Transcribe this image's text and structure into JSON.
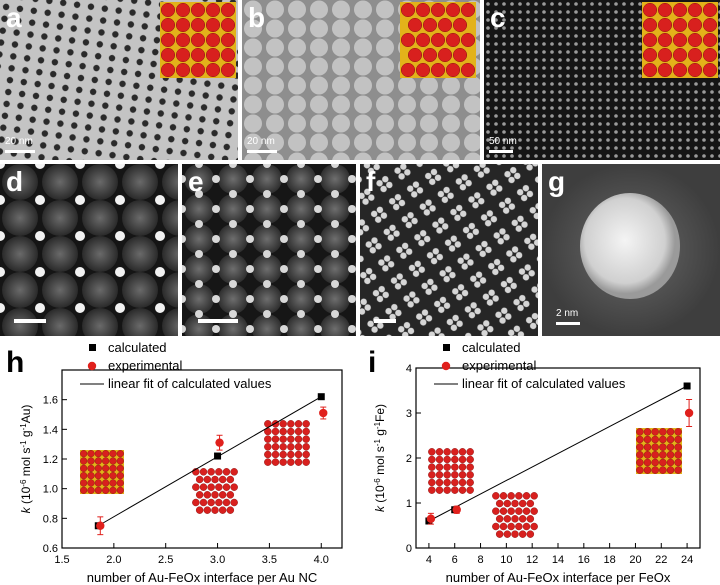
{
  "panels": {
    "a": {
      "label": "a",
      "scale": "20 nm"
    },
    "b": {
      "label": "b",
      "scale": "20 nm"
    },
    "c": {
      "label": "c",
      "scale": "50 nm"
    },
    "d": {
      "label": "d"
    },
    "e": {
      "label": "e"
    },
    "f": {
      "label": "f"
    },
    "g": {
      "label": "g",
      "scale": "2 nm"
    }
  },
  "colors": {
    "model_red": "#d8201e",
    "model_gold": "#e3b21a",
    "calc_marker": "#000000",
    "exp_marker": "#e0201c"
  },
  "chart_data": [
    {
      "panel_label": "h",
      "type": "scatter",
      "xlabel": "number of Au-FeOx interface per Au NC",
      "ylabel": "k (10⁻⁶ mol s⁻¹ g⁻¹Au)",
      "ylabel_parts": {
        "k": "k",
        "unit_open": "(10",
        "exp1": "-6",
        "mol": " mol s",
        "exp2": "-1",
        "g": " g",
        "exp3": "-1",
        "el": "Au)"
      },
      "xlim": [
        1.5,
        4.2
      ],
      "ylim": [
        0.6,
        1.8
      ],
      "xticks": [
        "1.5",
        "2.0",
        "2.5",
        "3.0",
        "3.5",
        "4.0"
      ],
      "yticks": [
        "0.6",
        "0.8",
        "1.0",
        "1.2",
        "1.4",
        "1.6"
      ],
      "legend": [
        "calculated",
        "experimental",
        "linear fit of calculated values"
      ],
      "legend_position": "top-left",
      "series": [
        {
          "name": "calculated",
          "x": [
            1.85,
            3.0,
            4.0
          ],
          "y": [
            0.75,
            1.22,
            1.62
          ]
        },
        {
          "name": "experimental",
          "x": [
            1.85,
            3.0,
            4.0
          ],
          "y": [
            0.75,
            1.31,
            1.51
          ],
          "err": [
            0.06,
            0.05,
            0.04
          ]
        },
        {
          "name": "linear fit of calculated values",
          "x": [
            1.85,
            4.0
          ],
          "y": [
            0.75,
            1.62
          ]
        }
      ]
    },
    {
      "panel_label": "i",
      "type": "scatter",
      "xlabel": "number of Au-FeOx interface per FeOx",
      "ylabel": "k (10⁻⁶ mol s⁻¹ g⁻¹Fe)",
      "ylabel_parts": {
        "k": "k",
        "unit_open": "(10",
        "exp1": "-6",
        "mol": " mol s",
        "exp2": "-1",
        "g": " g",
        "exp3": "-1",
        "el": "Fe)"
      },
      "xlim": [
        3,
        25
      ],
      "ylim": [
        0,
        4
      ],
      "xticks": [
        "4",
        "6",
        "8",
        "10",
        "12",
        "14",
        "16",
        "18",
        "20",
        "22",
        "24"
      ],
      "yticks": [
        "0",
        "1",
        "2",
        "3",
        "4"
      ],
      "legend": [
        "calculated",
        "experimental",
        "linear fit of calculated values"
      ],
      "legend_position": "top-left",
      "series": [
        {
          "name": "calculated",
          "x": [
            4,
            6,
            24
          ],
          "y": [
            0.6,
            0.85,
            3.6
          ]
        },
        {
          "name": "experimental",
          "x": [
            4,
            6,
            24
          ],
          "y": [
            0.65,
            0.85,
            3.0
          ],
          "err": [
            0.12,
            0.08,
            0.3
          ]
        },
        {
          "name": "linear fit of calculated values",
          "x": [
            4,
            24
          ],
          "y": [
            0.6,
            3.6
          ]
        }
      ]
    }
  ]
}
